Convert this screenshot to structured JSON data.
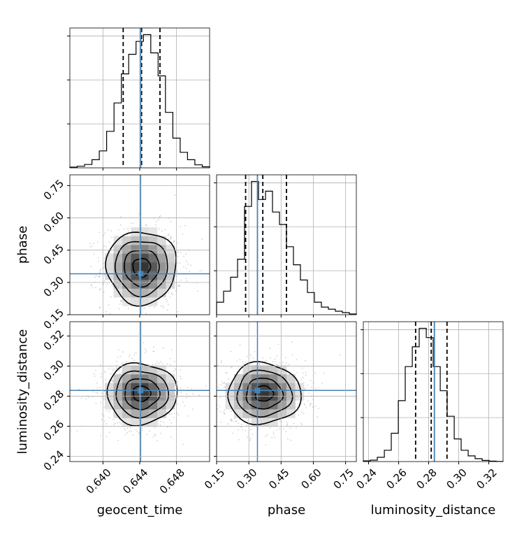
{
  "chart_data": {
    "type": "corner",
    "parameters": [
      "geocent_time",
      "phase",
      "luminosity_distance"
    ],
    "axis_labels": {
      "geocent_time": "geocent_time",
      "phase": "phase",
      "luminosity_distance": "luminosity_distance"
    },
    "ranges": {
      "geocent_time": [
        0.6364,
        0.6516
      ],
      "phase": [
        0.15,
        0.8
      ],
      "luminosity_distance": [
        0.2365,
        0.3295
      ]
    },
    "ticks": {
      "geocent_time": {
        "values": [
          0.64,
          0.644,
          0.648
        ],
        "labels": [
          "0.640",
          "0.644",
          "0.648"
        ]
      },
      "phase": {
        "values": [
          0.15,
          0.3,
          0.45,
          0.6,
          0.75
        ],
        "labels": [
          "0.15",
          "0.30",
          "0.45",
          "0.60",
          "0.75"
        ]
      },
      "luminosity_distance": {
        "values": [
          0.24,
          0.26,
          0.28,
          0.3,
          0.32
        ],
        "labels": [
          "0.24",
          "0.26",
          "0.28",
          "0.30",
          "0.32"
        ]
      }
    },
    "truths": {
      "geocent_time": 0.6441,
      "phase": 0.34,
      "luminosity_distance": 0.2838
    },
    "quantiles": {
      "geocent_time": [
        0.6422,
        0.6442,
        0.6462
      ],
      "phase": [
        0.285,
        0.365,
        0.475
      ],
      "luminosity_distance": [
        0.2713,
        0.2817,
        0.2922
      ]
    },
    "histograms": {
      "geocent_time": {
        "bin_edges": [
          0.6364,
          0.6372,
          0.638,
          0.6388,
          0.6396,
          0.6404,
          0.6412,
          0.642,
          0.6428,
          0.6436,
          0.6444,
          0.6452,
          0.646,
          0.6468,
          0.6476,
          0.6484,
          0.6492,
          0.65,
          0.6508,
          0.6516
        ],
        "counts": [
          0.005,
          0.012,
          0.025,
          0.06,
          0.125,
          0.27,
          0.48,
          0.695,
          0.84,
          0.935,
          0.985,
          0.85,
          0.68,
          0.41,
          0.22,
          0.115,
          0.06,
          0.022,
          0.008
        ]
      },
      "phase": {
        "bin_edges": [
          0.15,
          0.1825,
          0.215,
          0.2475,
          0.28,
          0.3125,
          0.345,
          0.3775,
          0.41,
          0.4425,
          0.475,
          0.5075,
          0.54,
          0.5725,
          0.605,
          0.6375,
          0.67,
          0.7025,
          0.735,
          0.7675,
          0.8
        ],
        "counts": [
          0.09,
          0.17,
          0.27,
          0.4,
          0.78,
          0.96,
          0.83,
          0.89,
          0.74,
          0.65,
          0.49,
          0.36,
          0.25,
          0.16,
          0.09,
          0.055,
          0.04,
          0.025,
          0.015,
          0.005
        ]
      },
      "luminosity_distance": {
        "bin_edges": [
          0.2365,
          0.2412,
          0.2458,
          0.2505,
          0.2551,
          0.2598,
          0.2644,
          0.2691,
          0.2737,
          0.2784,
          0.283,
          0.2877,
          0.2923,
          0.297,
          0.3016,
          0.3063,
          0.3109,
          0.3156,
          0.3202,
          0.3249,
          0.3295
        ],
        "counts": [
          0.005,
          0.01,
          0.03,
          0.08,
          0.2,
          0.43,
          0.67,
          0.81,
          0.94,
          0.875,
          0.67,
          0.5,
          0.32,
          0.16,
          0.08,
          0.04,
          0.02,
          0.008,
          0.003,
          0.001
        ]
      }
    },
    "gaussians": {
      "geocent_time": {
        "mean": 0.6442,
        "sd": 0.0019
      },
      "phase": {
        "mean": 0.37,
        "sd": 0.085
      },
      "luminosity_distance": {
        "mean": 0.2817,
        "sd": 0.0102
      }
    },
    "density_2d": [
      {
        "x": "geocent_time",
        "y": "phase"
      },
      {
        "x": "geocent_time",
        "y": "luminosity_distance"
      },
      {
        "x": "phase",
        "y": "luminosity_distance"
      }
    ],
    "contour_levels_sigma": [
      0.5,
      1.0,
      1.5,
      2.0
    ],
    "grid": true,
    "colors": {
      "truth": "#4682b4",
      "histogram": "#000000",
      "quantile": "#000000",
      "contour": "#000000",
      "samples": "#000000",
      "grid": "#b0b0b0"
    }
  }
}
